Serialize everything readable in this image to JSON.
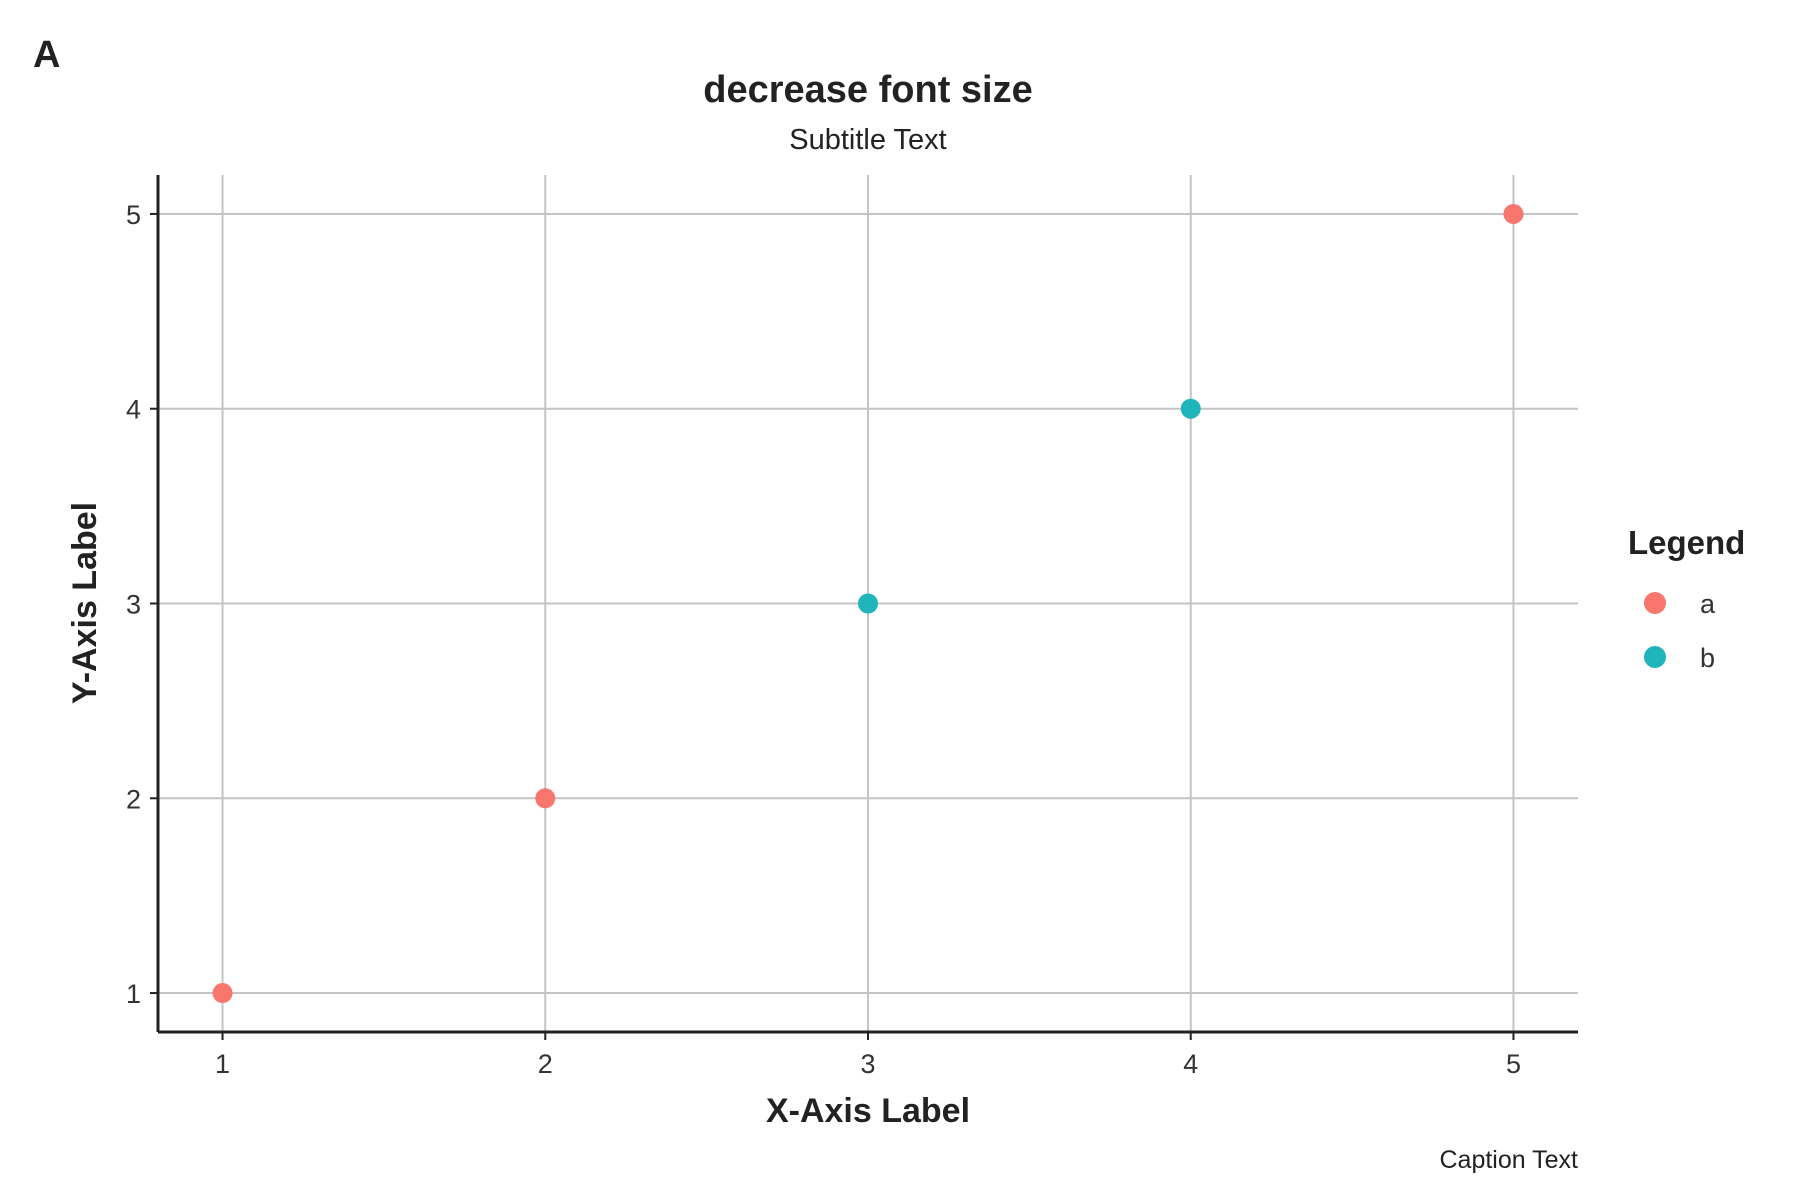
{
  "panel_tag": "A",
  "colors": {
    "a": "#F8766D",
    "b": "#1FB5BA",
    "grid": "#C4C4C4",
    "axis": "#222222"
  },
  "chart_data": {
    "type": "scatter",
    "title": "decrease font size",
    "subtitle": "Subtitle Text",
    "xlabel": "X-Axis Label",
    "ylabel": "Y-Axis Label",
    "caption": "Caption Text",
    "xlim": [
      0.8,
      5.2
    ],
    "ylim": [
      0.8,
      5.2
    ],
    "xticks": [
      1,
      2,
      3,
      4,
      5
    ],
    "yticks": [
      1,
      2,
      3,
      4,
      5
    ],
    "grid": true,
    "legend": {
      "title": "Legend",
      "position": "right",
      "entries": [
        "a",
        "b"
      ]
    },
    "series": [
      {
        "name": "a",
        "x": [
          1,
          2,
          5
        ],
        "y": [
          1,
          2,
          5
        ]
      },
      {
        "name": "b",
        "x": [
          3,
          4
        ],
        "y": [
          3,
          4
        ]
      }
    ]
  }
}
